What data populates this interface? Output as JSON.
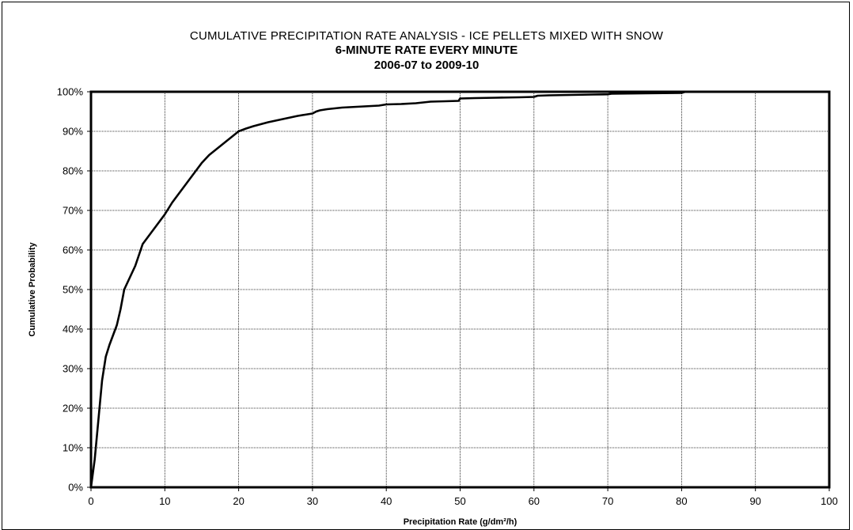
{
  "chart_data": {
    "type": "line",
    "title": "CUMULATIVE PRECIPITATION RATE ANALYSIS - ICE PELLETS MIXED WITH SNOW",
    "subtitle": "6-MINUTE RATE EVERY MINUTE",
    "subtitle2": "2006-07 to 2009-10",
    "xlabel": "Precipitation Rate (g/dm²/h)",
    "ylabel": "Cumulative Probability",
    "xlim": [
      0,
      100
    ],
    "ylim": [
      0,
      100
    ],
    "x_ticks": [
      "0",
      "10",
      "20",
      "30",
      "40",
      "50",
      "60",
      "70",
      "80",
      "90",
      "100"
    ],
    "y_ticks": [
      "0%",
      "10%",
      "20%",
      "30%",
      "40%",
      "50%",
      "60%",
      "70%",
      "80%",
      "90%",
      "100%"
    ],
    "grid": true,
    "legend": "none",
    "line_color": "#000000",
    "series": [
      {
        "x": [
          0,
          0.5,
          1,
          1.5,
          2,
          2.5,
          3,
          3.5,
          4,
          4.5,
          5,
          5.5,
          6,
          7,
          8,
          9,
          10,
          11,
          12,
          13,
          14,
          15,
          16,
          17,
          18,
          19,
          20,
          21,
          22,
          23,
          24,
          25,
          26,
          27,
          28,
          29,
          30,
          30.5,
          31,
          32,
          33,
          34,
          35,
          36,
          37,
          38,
          39,
          40,
          42,
          44,
          45,
          46,
          48,
          49.8,
          50,
          52,
          55,
          58,
          60,
          60.5,
          62,
          65,
          68,
          70,
          70.5,
          75,
          80,
          80.5,
          82
        ],
        "y": [
          0,
          7,
          17,
          27,
          33,
          36,
          38.5,
          41,
          45,
          50,
          52,
          54,
          56,
          61.5,
          64,
          66.5,
          69,
          72,
          74.5,
          77,
          79.5,
          82,
          84,
          85.5,
          87,
          88.5,
          90,
          90.7,
          91.3,
          91.8,
          92.3,
          92.7,
          93.1,
          93.5,
          93.9,
          94.2,
          94.5,
          95,
          95.3,
          95.6,
          95.8,
          96,
          96.1,
          96.2,
          96.3,
          96.4,
          96.5,
          96.8,
          96.9,
          97.1,
          97.3,
          97.5,
          97.6,
          97.7,
          98.3,
          98.4,
          98.5,
          98.6,
          98.7,
          99.0,
          99.1,
          99.2,
          99.3,
          99.35,
          99.5,
          99.6,
          99.7,
          100,
          100
        ]
      }
    ]
  }
}
